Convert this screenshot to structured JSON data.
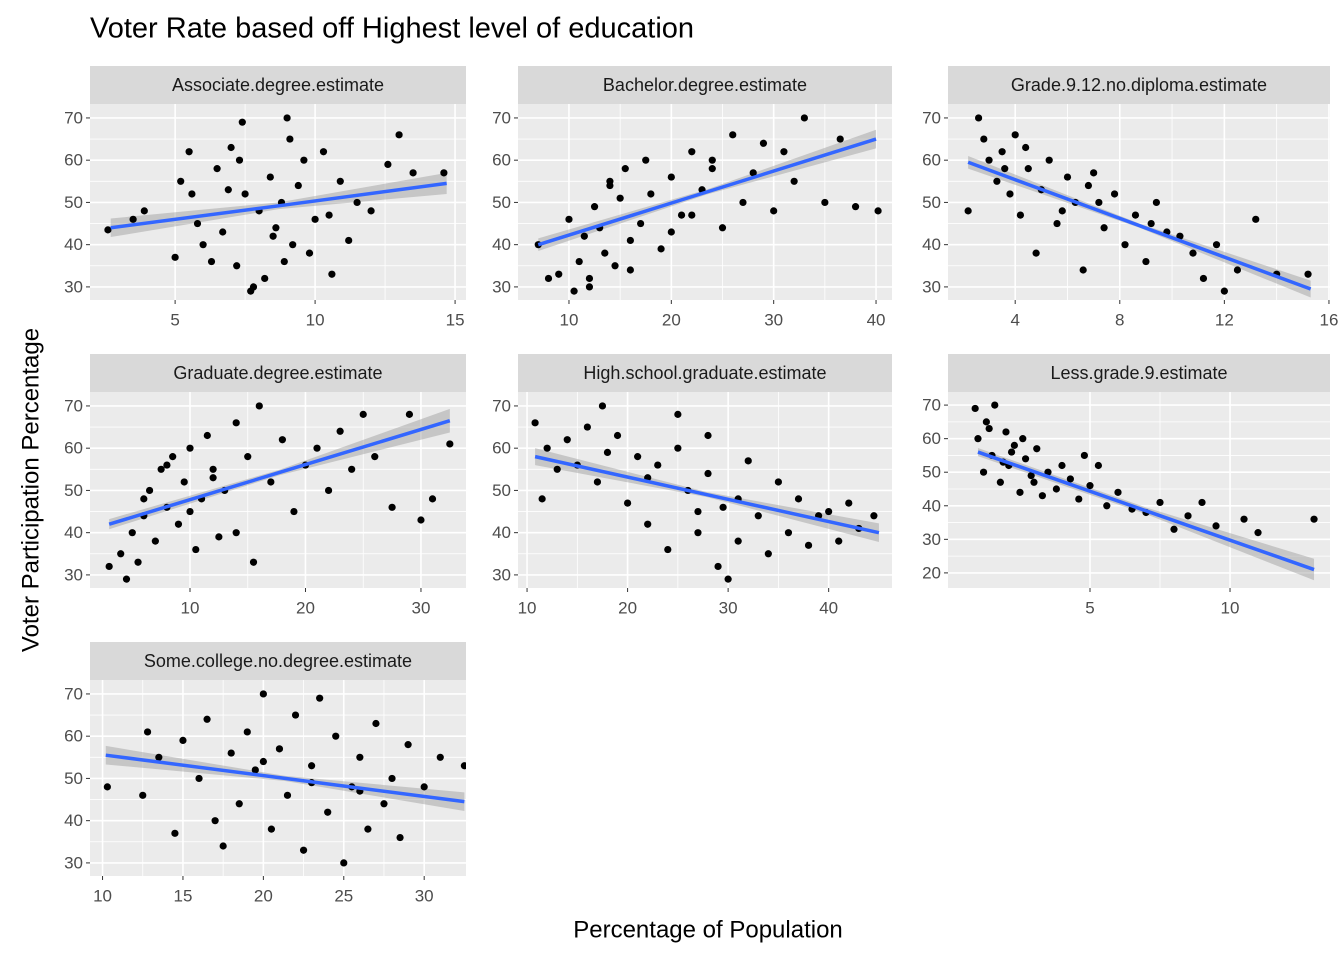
{
  "title": "Voter Rate based off Highest level of education",
  "xlabel": "Percentage of Population",
  "ylabel": "Voter Participation Percentage",
  "chart_data": [
    {
      "type": "scatter",
      "title": "Associate.degree.estimate",
      "color": "#000000",
      "fit_color": "#3366ff",
      "ribbon_color": "#999999",
      "grid": true,
      "xlim": [
        1.96,
        15.39
      ],
      "ylim": [
        26.9,
        73.3
      ],
      "xticks": [
        5,
        10,
        15
      ],
      "yticks": [
        30,
        40,
        50,
        60,
        70
      ],
      "x": [
        2.6,
        3.5,
        3.9,
        5.0,
        5.2,
        5.5,
        5.8,
        6.0,
        6.3,
        6.5,
        6.7,
        7.0,
        7.2,
        7.4,
        7.5,
        7.8,
        8.0,
        8.2,
        8.4,
        8.6,
        8.8,
        9.0,
        9.2,
        9.4,
        9.6,
        9.8,
        10.0,
        10.3,
        10.6,
        10.9,
        11.2,
        11.5,
        12.0,
        12.6,
        13.0,
        13.5,
        14.6,
        7.7,
        9.1,
        8.5,
        6.9,
        10.5,
        5.6,
        8.9,
        7.3
      ],
      "y": [
        43.5,
        46,
        48,
        37,
        55,
        62,
        45,
        40,
        36,
        58,
        43,
        63,
        35,
        69,
        52,
        30,
        48,
        32,
        56,
        44,
        50,
        70,
        40,
        54,
        60,
        38,
        46,
        62,
        33,
        55,
        41,
        50,
        48,
        59,
        66,
        57,
        57,
        29,
        65,
        42,
        53,
        47,
        52,
        36,
        60
      ],
      "fit_x": [
        2.7,
        8.7,
        14.7
      ],
      "fit_y": [
        44,
        49.2,
        54.5
      ],
      "fit_lower": [
        41.8,
        48.4,
        52
      ],
      "fit_upper": [
        46.2,
        50,
        57
      ]
    },
    {
      "type": "scatter",
      "title": "Bachelor.degree.estimate",
      "color": "#000000",
      "fit_color": "#3366ff",
      "ribbon_color": "#999999",
      "grid": true,
      "xlim": [
        5.02,
        41.56
      ],
      "ylim": [
        26.9,
        73.3
      ],
      "xticks": [
        10,
        20,
        30,
        40
      ],
      "yticks": [
        30,
        40,
        50,
        60,
        70
      ],
      "x": [
        7,
        8,
        9,
        10,
        10.5,
        11,
        11.5,
        12,
        12.5,
        13,
        13.5,
        14,
        14.5,
        15,
        15.5,
        16,
        17,
        17.5,
        18,
        19,
        20,
        21,
        22,
        23,
        24,
        25,
        26,
        27,
        28,
        29,
        30,
        31,
        32,
        33,
        35,
        36.5,
        38,
        40.2,
        12,
        16,
        20,
        24,
        14,
        22
      ],
      "y": [
        40,
        32,
        33,
        46,
        29,
        36,
        42,
        32,
        49,
        44,
        38,
        55,
        35,
        51,
        58,
        41,
        45,
        60,
        52,
        39,
        56,
        47,
        62,
        53,
        58,
        44,
        66,
        50,
        57,
        64,
        48,
        62,
        55,
        70,
        50,
        65,
        49,
        48,
        30,
        34,
        43,
        60,
        54,
        47
      ],
      "fit_x": [
        7,
        23.5,
        40
      ],
      "fit_y": [
        40,
        52.5,
        65
      ],
      "fit_lower": [
        38.5,
        51.9,
        62.8
      ],
      "fit_upper": [
        41.5,
        53.1,
        67.2
      ]
    },
    {
      "type": "scatter",
      "title": "Grade.9.12.no.diploma.estimate",
      "color": "#000000",
      "fit_color": "#3366ff",
      "ribbon_color": "#999999",
      "grid": true,
      "xlim": [
        1.43,
        16.04
      ],
      "ylim": [
        26.9,
        73.3
      ],
      "xticks": [
        4,
        8,
        12,
        16
      ],
      "yticks": [
        30,
        40,
        50,
        60,
        70
      ],
      "x": [
        2.2,
        2.6,
        2.8,
        3.0,
        3.3,
        3.5,
        3.8,
        4.0,
        4.2,
        4.5,
        4.8,
        5.0,
        5.3,
        5.6,
        6.0,
        6.3,
        6.6,
        7.0,
        7.4,
        7.8,
        8.2,
        8.6,
        9.0,
        9.4,
        9.8,
        10.3,
        10.8,
        11.2,
        11.7,
        12.0,
        12.5,
        13.2,
        14.0,
        15.2,
        4.4,
        5.8,
        6.8,
        3.6,
        7.2,
        9.2
      ],
      "y": [
        48,
        70,
        65,
        60,
        55,
        62,
        52,
        66,
        47,
        58,
        38,
        53,
        60,
        45,
        56,
        50,
        34,
        57,
        44,
        52,
        40,
        47,
        36,
        50,
        43,
        42,
        38,
        32,
        40,
        29,
        34,
        46,
        33,
        33,
        63,
        48,
        54,
        58,
        50,
        45
      ],
      "fit_x": [
        2.2,
        8.75,
        15.3
      ],
      "fit_y": [
        59.5,
        44.5,
        29.5
      ],
      "fit_lower": [
        58,
        44,
        27.5
      ],
      "fit_upper": [
        61,
        45,
        31.5
      ]
    },
    {
      "type": "scatter",
      "title": "Graduate.degree.estimate",
      "color": "#000000",
      "fit_color": "#3366ff",
      "ribbon_color": "#999999",
      "grid": true,
      "xlim": [
        1.34,
        33.9
      ],
      "ylim": [
        26.9,
        73.3
      ],
      "xticks": [
        10,
        20,
        30
      ],
      "yticks": [
        30,
        40,
        50,
        60,
        70
      ],
      "x": [
        3,
        4,
        4.5,
        5,
        5.5,
        6,
        6.5,
        7,
        7.5,
        8,
        8.5,
        9,
        9.5,
        10,
        10.5,
        11,
        11.5,
        12,
        12.5,
        13,
        14,
        15,
        15.5,
        16,
        17,
        18,
        19,
        20,
        21,
        22,
        23,
        24,
        25,
        26,
        27.5,
        29,
        30,
        31,
        32.5,
        6,
        8,
        10,
        12,
        14
      ],
      "y": [
        32,
        35,
        29,
        40,
        33,
        44,
        50,
        38,
        55,
        46,
        58,
        42,
        52,
        60,
        36,
        48,
        63,
        55,
        39,
        50,
        66,
        58,
        33,
        70,
        52,
        62,
        45,
        56,
        60,
        50,
        64,
        55,
        68,
        58,
        46,
        68,
        43,
        48,
        61,
        48,
        56,
        45,
        53,
        40
      ],
      "fit_x": [
        3,
        17.75,
        32.5
      ],
      "fit_y": [
        42,
        54.25,
        66.5
      ],
      "fit_lower": [
        40.8,
        53.6,
        63.7
      ],
      "fit_upper": [
        43.2,
        54.9,
        69.3
      ]
    },
    {
      "type": "scatter",
      "title": "High.school.graduate.estimate",
      "color": "#000000",
      "fit_color": "#3366ff",
      "ribbon_color": "#999999",
      "grid": true,
      "xlim": [
        9.1,
        46.3
      ],
      "ylim": [
        26.9,
        73.3
      ],
      "xticks": [
        10,
        20,
        30,
        40
      ],
      "yticks": [
        30,
        40,
        50,
        60,
        70
      ],
      "x": [
        10.8,
        11.5,
        12,
        13,
        14,
        15,
        16,
        17,
        17.5,
        18,
        19,
        20,
        21,
        22,
        23,
        24,
        25,
        26,
        27,
        28,
        29,
        29.5,
        30,
        31,
        32,
        33,
        34,
        35,
        36,
        37,
        38,
        39,
        40,
        41,
        42,
        43,
        44.5,
        25,
        28,
        31,
        22,
        27
      ],
      "y": [
        66,
        48,
        60,
        55,
        62,
        56,
        65,
        52,
        70,
        59,
        63,
        47,
        58,
        42,
        56,
        36,
        60,
        50,
        40,
        54,
        32,
        46,
        29,
        38,
        57,
        44,
        35,
        52,
        40,
        48,
        37,
        44,
        45,
        38,
        47,
        41,
        44,
        68,
        63,
        48,
        53,
        45
      ],
      "fit_x": [
        10.8,
        27.9,
        45
      ],
      "fit_y": [
        58,
        49,
        40
      ],
      "fit_lower": [
        56,
        48.4,
        37.8
      ],
      "fit_upper": [
        60,
        49.6,
        42.2
      ]
    },
    {
      "type": "scatter",
      "title": "Less.grade.9.estimate",
      "color": "#000000",
      "fit_color": "#3366ff",
      "ribbon_color": "#999999",
      "grid": true,
      "xlim": [
        -0.07,
        13.57
      ],
      "ylim": [
        15.5,
        73.9
      ],
      "xticks": [
        5,
        10
      ],
      "yticks": [
        20,
        30,
        40,
        50,
        60,
        70
      ],
      "x": [
        0.9,
        1.0,
        1.2,
        1.3,
        1.5,
        1.6,
        1.8,
        2.0,
        2.1,
        2.3,
        2.5,
        2.7,
        2.9,
        3.1,
        3.3,
        3.5,
        3.8,
        4.0,
        4.3,
        4.6,
        5.0,
        5.3,
        5.6,
        6.0,
        6.5,
        7.0,
        7.5,
        8.0,
        8.5,
        9.0,
        9.5,
        10.5,
        11.0,
        13.0,
        1.4,
        2.2,
        2.6,
        3.0,
        1.9,
        4.8
      ],
      "y": [
        69,
        60,
        50,
        65,
        55,
        70,
        47,
        62,
        52,
        58,
        44,
        54,
        49,
        57,
        43,
        50,
        45,
        52,
        48,
        42,
        46,
        52,
        40,
        44,
        39,
        38,
        41,
        33,
        37,
        41,
        34,
        36,
        32,
        36,
        63,
        56,
        60,
        47,
        53,
        55
      ],
      "fit_x": [
        1,
        7,
        13
      ],
      "fit_y": [
        56,
        38.5,
        21
      ],
      "fit_lower": [
        54.8,
        37.5,
        17.8
      ],
      "fit_upper": [
        57.2,
        39.5,
        24.2
      ]
    },
    {
      "type": "scatter",
      "title": "Some.college.no.degree.estimate",
      "color": "#000000",
      "fit_color": "#3366ff",
      "ribbon_color": "#999999",
      "grid": true,
      "xlim": [
        9.22,
        32.6
      ],
      "ylim": [
        26.9,
        73.3
      ],
      "xticks": [
        10,
        15,
        20,
        25,
        30
      ],
      "yticks": [
        30,
        40,
        50,
        60,
        70
      ],
      "x": [
        10.3,
        12.5,
        12.8,
        13.5,
        14.5,
        15,
        16,
        16.5,
        17,
        17.5,
        18,
        18.5,
        19,
        19.5,
        20,
        20.5,
        21,
        21.5,
        22,
        22.5,
        23,
        23.5,
        24,
        24.5,
        25,
        25.5,
        26,
        26.5,
        27,
        27.5,
        28,
        28.5,
        29,
        30,
        31,
        32.5,
        20,
        23,
        26
      ],
      "y": [
        48,
        46,
        61,
        55,
        37,
        59,
        50,
        64,
        40,
        34,
        56,
        44,
        61,
        52,
        70,
        38,
        57,
        46,
        65,
        33,
        53,
        69,
        42,
        60,
        30,
        48,
        55,
        38,
        63,
        44,
        50,
        36,
        58,
        48,
        55,
        53,
        54,
        49,
        47
      ],
      "fit_x": [
        10.2,
        21.35,
        32.5
      ],
      "fit_y": [
        55.5,
        50,
        44.5
      ],
      "fit_lower": [
        53.3,
        49.4,
        42.3
      ],
      "fit_upper": [
        57.7,
        50.6,
        46.7
      ]
    }
  ]
}
